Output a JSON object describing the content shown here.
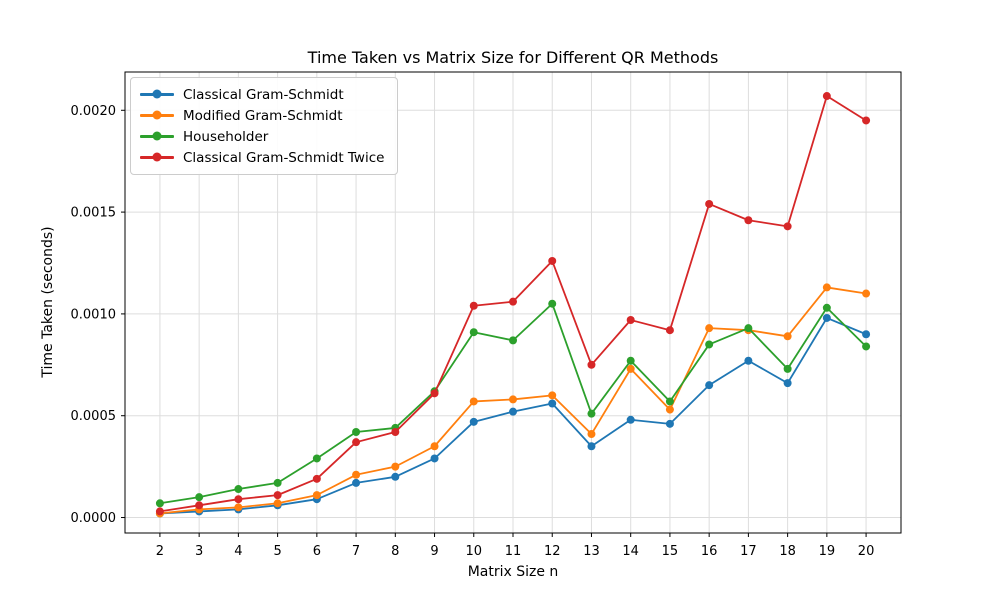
{
  "chart_data": {
    "type": "line",
    "title": "Time Taken vs Matrix Size for Different QR Methods",
    "xlabel": "Matrix Size n",
    "ylabel": "Time Taken (seconds)",
    "x": [
      2,
      3,
      4,
      5,
      6,
      7,
      8,
      9,
      10,
      11,
      12,
      13,
      14,
      15,
      16,
      17,
      18,
      19,
      20
    ],
    "xtick_labels": [
      "2",
      "3",
      "4",
      "5",
      "6",
      "7",
      "8",
      "9",
      "10",
      "11",
      "12",
      "13",
      "14",
      "15",
      "16",
      "17",
      "18",
      "19",
      "20"
    ],
    "yticks": [
      0.0,
      0.0005,
      0.001,
      0.0015,
      0.002
    ],
    "ytick_labels": [
      "0.0000",
      "0.0005",
      "0.0010",
      "0.0015",
      "0.0020"
    ],
    "xlim": [
      1.11,
      20.89
    ],
    "ylim": [
      -7.6e-05,
      0.002188
    ],
    "grid": true,
    "grid_color": "#dddddd",
    "spine_color": "#000000",
    "legend_position": "upper left",
    "marker": "o",
    "series": [
      {
        "name": "Classical Gram-Schmidt",
        "color": "#1f77b4",
        "values": [
          2e-05,
          3e-05,
          4e-05,
          6e-05,
          9e-05,
          0.00017,
          0.0002,
          0.00029,
          0.00047,
          0.00052,
          0.00056,
          0.00035,
          0.00048,
          0.00046,
          0.00065,
          0.00077,
          0.00066,
          0.00098,
          0.0009
        ]
      },
      {
        "name": "Modified Gram-Schmidt",
        "color": "#ff7f0e",
        "values": [
          2e-05,
          4e-05,
          5e-05,
          7e-05,
          0.00011,
          0.00021,
          0.00025,
          0.00035,
          0.00057,
          0.00058,
          0.0006,
          0.00041,
          0.00073,
          0.00053,
          0.00093,
          0.00092,
          0.00089,
          0.00113,
          0.0011
        ]
      },
      {
        "name": "Householder",
        "color": "#2ca02c",
        "values": [
          7e-05,
          0.0001,
          0.00014,
          0.00017,
          0.00029,
          0.00042,
          0.00044,
          0.00062,
          0.00091,
          0.00087,
          0.00105,
          0.00051,
          0.00077,
          0.00057,
          0.00085,
          0.00093,
          0.00073,
          0.00103,
          0.00084
        ]
      },
      {
        "name": "Classical Gram-Schmidt Twice",
        "color": "#d62728",
        "values": [
          3e-05,
          6e-05,
          9e-05,
          0.00011,
          0.00019,
          0.00037,
          0.00042,
          0.00061,
          0.00104,
          0.00106,
          0.00126,
          0.00075,
          0.00097,
          0.00092,
          0.00154,
          0.00146,
          0.00143,
          0.00207,
          0.00195
        ]
      }
    ]
  }
}
